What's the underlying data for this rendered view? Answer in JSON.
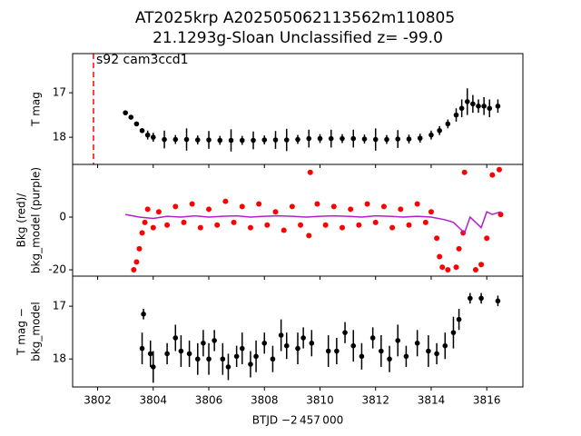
{
  "chart_data": [
    {
      "type": "errorbar",
      "title": [
        "AT2025krp  A202505062113562m110805",
        "21.1293g-Sloan Unclassified z= -99.0"
      ],
      "annotation": "s92 cam3ccd1",
      "ylabel": [
        "T mag"
      ],
      "ylim": [
        18.61,
        16.12
      ],
      "yticks": [
        17,
        18
      ],
      "vline": {
        "x": 3801.85,
        "color": "#ff0000"
      },
      "series": [
        {
          "color": "#000000",
          "x": [
            3803.0,
            3803.2,
            3803.4,
            3803.6,
            3803.8,
            3804.0,
            3804.4,
            3804.8,
            3805.2,
            3805.6,
            3806.0,
            3806.4,
            3806.8,
            3807.2,
            3807.6,
            3808.0,
            3808.4,
            3808.8,
            3809.2,
            3809.6,
            3810.0,
            3810.4,
            3810.8,
            3811.2,
            3811.6,
            3812.0,
            3812.4,
            3812.8,
            3813.2,
            3813.6,
            3814.0,
            3814.3,
            3814.6,
            3814.9,
            3815.1,
            3815.3,
            3815.5,
            3815.7,
            3815.9,
            3816.1,
            3816.4
          ],
          "values": [
            17.45,
            17.55,
            17.7,
            17.85,
            17.95,
            18.0,
            18.05,
            18.05,
            18.05,
            18.06,
            18.06,
            18.07,
            18.07,
            18.07,
            18.07,
            18.06,
            18.06,
            18.06,
            18.05,
            18.03,
            18.03,
            18.03,
            18.03,
            18.03,
            18.04,
            18.05,
            18.05,
            18.04,
            18.04,
            18.02,
            17.95,
            17.85,
            17.7,
            17.5,
            17.35,
            17.2,
            17.25,
            17.3,
            17.3,
            17.35,
            17.3
          ],
          "errors": [
            0.05,
            0.05,
            0.05,
            0.05,
            0.1,
            0.1,
            0.2,
            0.1,
            0.25,
            0.1,
            0.2,
            0.1,
            0.25,
            0.1,
            0.2,
            0.1,
            0.2,
            0.25,
            0.1,
            0.2,
            0.1,
            0.2,
            0.1,
            0.2,
            0.1,
            0.25,
            0.1,
            0.2,
            0.1,
            0.1,
            0.1,
            0.1,
            0.1,
            0.15,
            0.2,
            0.3,
            0.2,
            0.15,
            0.2,
            0.2,
            0.15
          ]
        }
      ]
    },
    {
      "type": "scatter-line",
      "ylabel": [
        "Bkg (red)/",
        "bkg_model (purple)"
      ],
      "ylim": [
        -22.4,
        20
      ],
      "yticks": [
        -20,
        0
      ],
      "series": [
        {
          "type": "scatter",
          "color": "#ff0000",
          "x": [
            3803.3,
            3803.4,
            3803.5,
            3803.6,
            3803.7,
            3803.8,
            3804.0,
            3804.2,
            3804.5,
            3804.8,
            3805.1,
            3805.4,
            3805.7,
            3806.0,
            3806.3,
            3806.6,
            3806.9,
            3807.2,
            3807.5,
            3807.8,
            3808.1,
            3808.4,
            3808.7,
            3809.0,
            3809.3,
            3809.6,
            3809.65,
            3809.9,
            3810.2,
            3810.5,
            3810.8,
            3811.1,
            3811.4,
            3811.7,
            3812.0,
            3812.3,
            3812.6,
            3812.9,
            3813.2,
            3813.5,
            3813.8,
            3814.0,
            3814.2,
            3814.3,
            3814.4,
            3814.6,
            3814.9,
            3815.0,
            3815.15,
            3815.2,
            3815.6,
            3815.8,
            3816.0,
            3816.2,
            3816.45,
            3816.5
          ],
          "values": [
            -20,
            -17,
            -12,
            -6,
            -2,
            3,
            -4,
            2,
            -3,
            4,
            -2,
            5,
            -4,
            3,
            -3,
            6,
            -2,
            4,
            -4,
            5,
            -3,
            2,
            -5,
            4,
            -3,
            -7,
            17,
            5,
            -3,
            4,
            -4,
            3,
            -3,
            5,
            -2,
            4,
            -4,
            3,
            -3,
            5,
            -2,
            2,
            -8,
            -15,
            -19,
            -20,
            -19,
            -12,
            -6,
            17,
            -20,
            -18,
            -8,
            16,
            18,
            1
          ]
        },
        {
          "type": "line",
          "color": "#b01fc8",
          "x": [
            3803.0,
            3803.5,
            3804.0,
            3804.5,
            3805.0,
            3805.5,
            3806.0,
            3806.5,
            3807.0,
            3807.5,
            3808.0,
            3808.5,
            3809.0,
            3809.5,
            3810.0,
            3810.5,
            3811.0,
            3811.5,
            3812.0,
            3812.5,
            3813.0,
            3813.5,
            3814.0,
            3814.5,
            3814.8,
            3815.0,
            3815.2,
            3815.4,
            3815.6,
            3815.8,
            3816.0,
            3816.2,
            3816.5
          ],
          "values": [
            1,
            0,
            -0.5,
            0.3,
            0,
            0.5,
            0,
            0.3,
            0.5,
            0,
            0.3,
            0.5,
            0.3,
            0,
            0.3,
            0.5,
            0.3,
            0,
            0.5,
            0.3,
            0,
            0.3,
            0,
            -1,
            -2,
            -4,
            -6,
            0,
            -2,
            -4,
            2,
            1,
            2
          ]
        }
      ]
    },
    {
      "type": "errorbar",
      "ylabel": [
        "T mag −",
        "bkg_model"
      ],
      "xlabel": "BTJD −2 457 000",
      "xlim": [
        3801.1,
        3817.3
      ],
      "xticks": [
        3802,
        3804,
        3806,
        3808,
        3810,
        3812,
        3814,
        3816
      ],
      "ylim": [
        18.53,
        16.43
      ],
      "yticks": [
        17,
        18
      ],
      "series": [
        {
          "color": "#000000",
          "x": [
            3803.6,
            3803.65,
            3803.9,
            3804.0,
            3804.5,
            3804.8,
            3805.0,
            3805.3,
            3805.6,
            3805.8,
            3806.0,
            3806.2,
            3806.5,
            3806.7,
            3807.0,
            3807.2,
            3807.5,
            3807.7,
            3808.0,
            3808.3,
            3808.6,
            3808.8,
            3809.2,
            3809.4,
            3809.7,
            3810.3,
            3810.6,
            3810.9,
            3811.2,
            3811.5,
            3811.9,
            3812.2,
            3812.5,
            3812.8,
            3813.1,
            3813.5,
            3813.9,
            3814.2,
            3814.5,
            3814.8,
            3815.0,
            3815.4,
            3815.8,
            3816.4
          ],
          "values": [
            17.8,
            17.15,
            17.9,
            18.15,
            17.9,
            17.6,
            17.85,
            17.9,
            18.0,
            17.7,
            18.0,
            17.65,
            18.0,
            18.15,
            17.95,
            17.8,
            18.1,
            17.95,
            17.7,
            18.0,
            17.55,
            17.75,
            17.8,
            17.6,
            17.7,
            17.85,
            17.85,
            17.5,
            17.75,
            17.95,
            17.6,
            17.85,
            18.0,
            17.65,
            17.95,
            17.7,
            17.85,
            17.9,
            17.75,
            17.5,
            17.25,
            16.85,
            16.85,
            16.9
          ],
          "errors": [
            0.3,
            0.1,
            0.25,
            0.3,
            0.2,
            0.25,
            0.3,
            0.25,
            0.3,
            0.25,
            0.3,
            0.2,
            0.3,
            0.25,
            0.2,
            0.3,
            0.25,
            0.3,
            0.2,
            0.25,
            0.3,
            0.25,
            0.3,
            0.2,
            0.25,
            0.3,
            0.25,
            0.2,
            0.3,
            0.25,
            0.2,
            0.3,
            0.25,
            0.3,
            0.2,
            0.25,
            0.3,
            0.2,
            0.25,
            0.3,
            0.2,
            0.1,
            0.1,
            0.1
          ]
        }
      ]
    }
  ]
}
